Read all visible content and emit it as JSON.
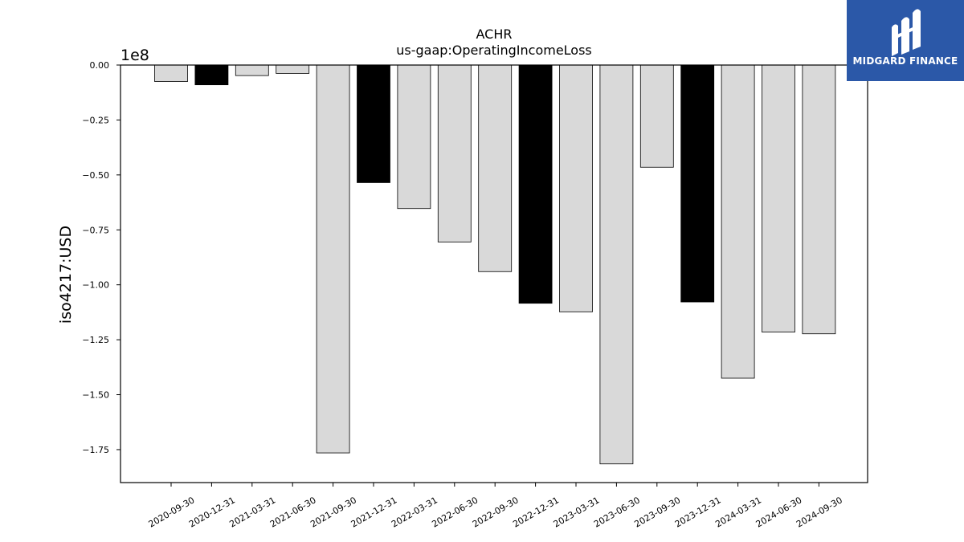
{
  "logo": {
    "text": "MIDGARD FINANCE"
  },
  "chart_data": {
    "type": "bar",
    "title": "ACHR",
    "subtitle": "us-gaap:OperatingIncomeLoss",
    "ylabel": "iso4217:USD",
    "xlabel": "",
    "offset_label": "1e8",
    "ylim": [
      -190000000,
      0
    ],
    "yticks": [
      0,
      -25000000,
      -50000000,
      -75000000,
      -100000000,
      -125000000,
      -150000000,
      -175000000
    ],
    "ytick_labels": [
      "0.00",
      "−0.25",
      "−0.50",
      "−0.75",
      "−1.00",
      "−1.25",
      "−1.50",
      "−1.75"
    ],
    "grid": false,
    "categories": [
      "2020-09-30",
      "2020-12-31",
      "2021-03-31",
      "2021-06-30",
      "2021-09-30",
      "2021-12-31",
      "2022-03-31",
      "2022-06-30",
      "2022-09-30",
      "2022-12-31",
      "2023-03-31",
      "2023-06-30",
      "2023-09-30",
      "2023-12-31",
      "2024-03-31",
      "2024-06-30",
      "2024-09-30"
    ],
    "values": [
      -7500000,
      -9000000,
      -4800000,
      -3800000,
      -176500000,
      -53500000,
      -65300000,
      -80500000,
      -94000000,
      -108400000,
      -112300000,
      -181500000,
      -46500000,
      -107800000,
      -142500000,
      -121500000,
      -122300000
    ],
    "colors": [
      "#d9d9d9",
      "#000000",
      "#d9d9d9",
      "#d9d9d9",
      "#d9d9d9",
      "#000000",
      "#d9d9d9",
      "#d9d9d9",
      "#d9d9d9",
      "#000000",
      "#d9d9d9",
      "#d9d9d9",
      "#d9d9d9",
      "#000000",
      "#d9d9d9",
      "#d9d9d9",
      "#d9d9d9"
    ],
    "edge_color": "#000000"
  }
}
